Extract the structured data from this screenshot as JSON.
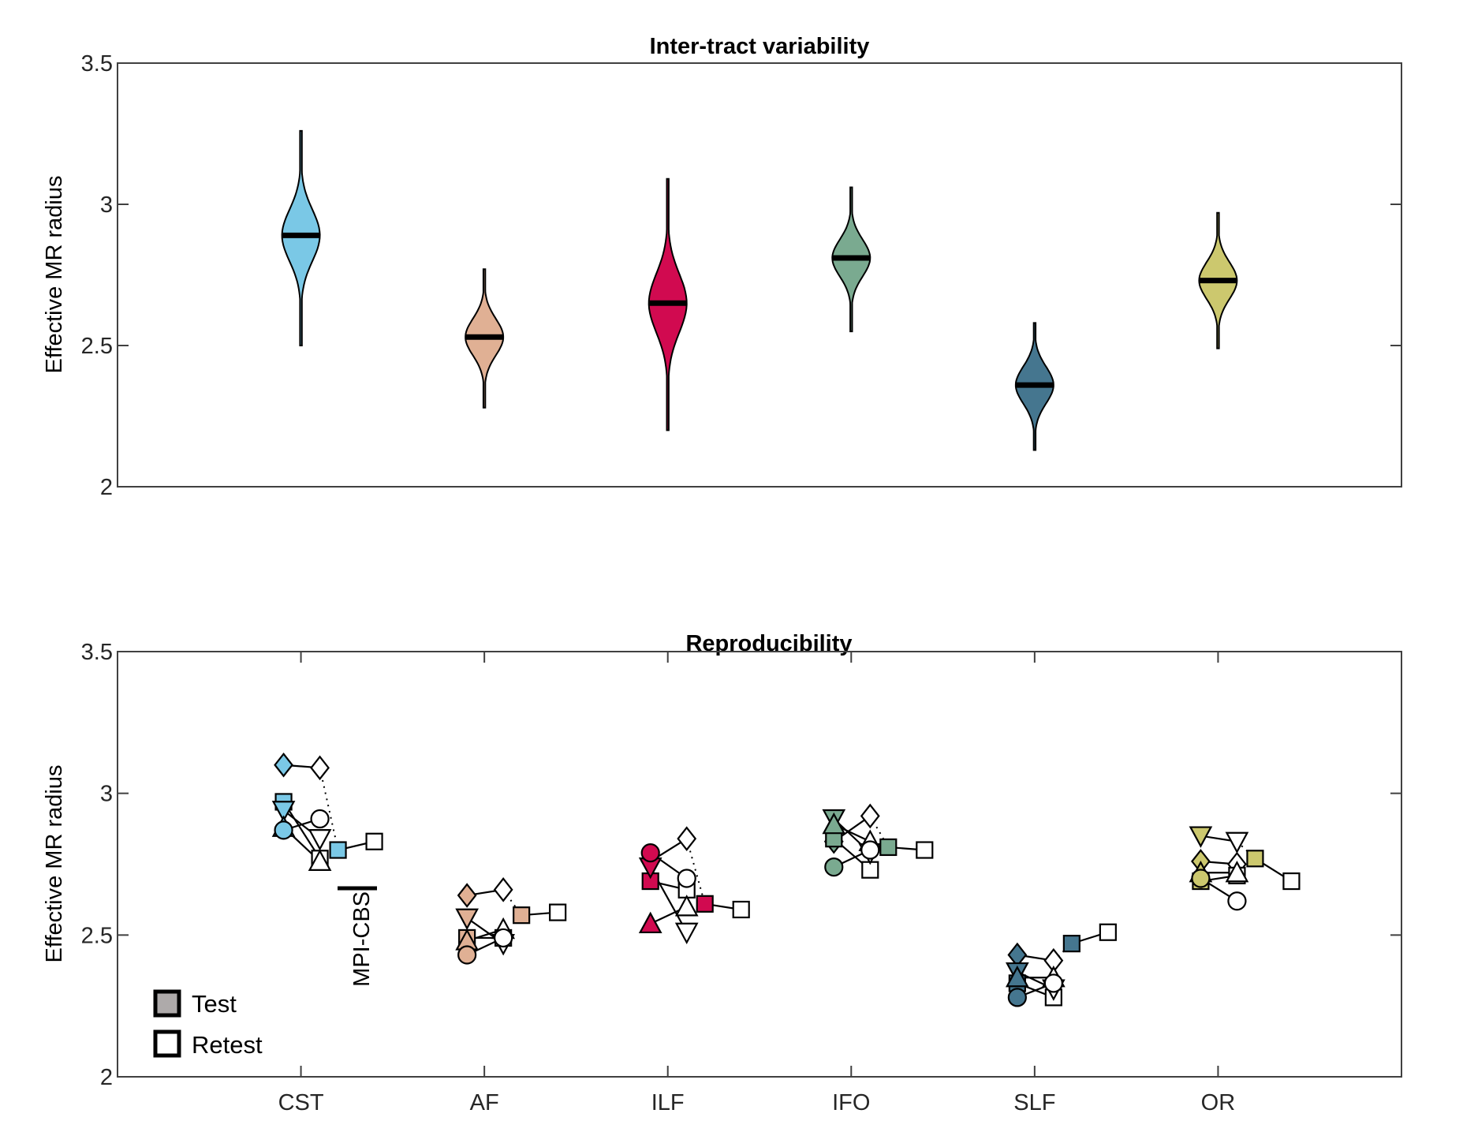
{
  "chart_data": [
    {
      "type": "violin",
      "title": "Inter-tract variability",
      "xlabel": "",
      "ylabel": "Effective MR radius",
      "ylim": [
        2,
        3.5
      ],
      "xlim": [
        0,
        7
      ],
      "yticks": [
        2,
        2.5,
        3,
        3.5
      ],
      "ytick_labels": [
        "2",
        "2.5",
        "3",
        "3.5"
      ],
      "categories": [
        "CST",
        "AF",
        "ILF",
        "IFO",
        "SLF",
        "OR"
      ],
      "grid": false,
      "series": [
        {
          "name": "CST",
          "color": "#7ac8e6",
          "median": 2.89,
          "min": 2.5,
          "max": 3.26,
          "spread": 0.07
        },
        {
          "name": "AF",
          "color": "#e0b094",
          "median": 2.53,
          "min": 2.28,
          "max": 2.77,
          "spread": 0.05
        },
        {
          "name": "ILF",
          "color": "#d10a50",
          "median": 2.65,
          "min": 2.2,
          "max": 3.09,
          "spread": 0.08
        },
        {
          "name": "IFO",
          "color": "#7aaa90",
          "median": 2.81,
          "min": 2.55,
          "max": 3.06,
          "spread": 0.05
        },
        {
          "name": "SLF",
          "color": "#45768f",
          "median": 2.36,
          "min": 2.13,
          "max": 2.58,
          "spread": 0.05
        },
        {
          "name": "OR",
          "color": "#ccc86e",
          "median": 2.73,
          "min": 2.49,
          "max": 2.97,
          "spread": 0.05
        }
      ]
    },
    {
      "type": "scatter",
      "title": "Reproducibility",
      "xlabel": "",
      "ylabel": "Effective MR radius",
      "ylim": [
        2,
        3.5
      ],
      "xlim": [
        0,
        7
      ],
      "yticks": [
        2,
        2.5,
        3,
        3.5
      ],
      "ytick_labels": [
        "2",
        "2.5",
        "3",
        "3.5"
      ],
      "categories": [
        "CST",
        "AF",
        "ILF",
        "IFO",
        "SLF",
        "OR"
      ],
      "xtick_labels": [
        "CST",
        "AF",
        "ILF",
        "IFO",
        "SLF",
        "OR"
      ],
      "grid": false,
      "legend": {
        "placement": "bottom-left",
        "entries": [
          {
            "label": "Test",
            "fill": "#aeaaaa"
          },
          {
            "label": "Retest",
            "fill": "#ffffff"
          }
        ]
      },
      "annotation": {
        "text": "MPI-CBS"
      },
      "subject_markers": [
        "diamond",
        "square",
        "triangle-down",
        "triangle-up",
        "circle"
      ],
      "tracts": [
        {
          "name": "CST",
          "color": "#7ac8e6",
          "test": {
            "diamond": 3.1,
            "square": 2.97,
            "triangle-down": 2.94,
            "triangle-up": 2.88,
            "circle": 2.87
          },
          "retest": {
            "diamond": 3.09,
            "square": 2.77,
            "triangle-down": 2.84,
            "triangle-up": 2.76,
            "circle": 2.91
          },
          "mpi": {
            "test": 2.8,
            "retest": 2.83
          }
        },
        {
          "name": "AF",
          "color": "#e0b094",
          "test": {
            "diamond": 2.64,
            "square": 2.49,
            "triangle-down": 2.56,
            "triangle-up": 2.48,
            "circle": 2.43
          },
          "retest": {
            "diamond": 2.66,
            "square": 2.49,
            "triangle-down": 2.47,
            "triangle-up": 2.52,
            "circle": 2.49
          },
          "mpi": {
            "test": 2.57,
            "retest": 2.58
          }
        },
        {
          "name": "ILF",
          "color": "#d10a50",
          "test": {
            "diamond": 2.76,
            "square": 2.69,
            "triangle-down": 2.74,
            "triangle-up": 2.54,
            "circle": 2.79
          },
          "retest": {
            "diamond": 2.84,
            "square": 2.66,
            "triangle-down": 2.51,
            "triangle-up": 2.6,
            "circle": 2.7
          },
          "mpi": {
            "test": 2.61,
            "retest": 2.59
          }
        },
        {
          "name": "IFO",
          "color": "#7aaa90",
          "test": {
            "diamond": 2.83,
            "square": 2.84,
            "triangle-down": 2.91,
            "triangle-up": 2.89,
            "circle": 2.74
          },
          "retest": {
            "diamond": 2.92,
            "square": 2.73,
            "triangle-down": 2.79,
            "triangle-up": 2.83,
            "circle": 2.8
          },
          "mpi": {
            "test": 2.81,
            "retest": 2.8
          }
        },
        {
          "name": "SLF",
          "color": "#45768f",
          "test": {
            "diamond": 2.43,
            "square": 2.33,
            "triangle-down": 2.37,
            "triangle-up": 2.35,
            "circle": 2.28
          },
          "retest": {
            "diamond": 2.41,
            "square": 2.28,
            "triangle-down": 2.31,
            "triangle-up": 2.35,
            "circle": 2.33
          },
          "mpi": {
            "test": 2.47,
            "retest": 2.51
          }
        },
        {
          "name": "OR",
          "color": "#ccc86e",
          "test": {
            "diamond": 2.76,
            "square": 2.69,
            "triangle-down": 2.85,
            "triangle-up": 2.72,
            "circle": 2.7
          },
          "retest": {
            "diamond": 2.75,
            "square": 2.71,
            "triangle-down": 2.83,
            "triangle-up": 2.72,
            "circle": 2.62
          },
          "mpi": {
            "test": 2.77,
            "retest": 2.69
          }
        }
      ]
    }
  ]
}
